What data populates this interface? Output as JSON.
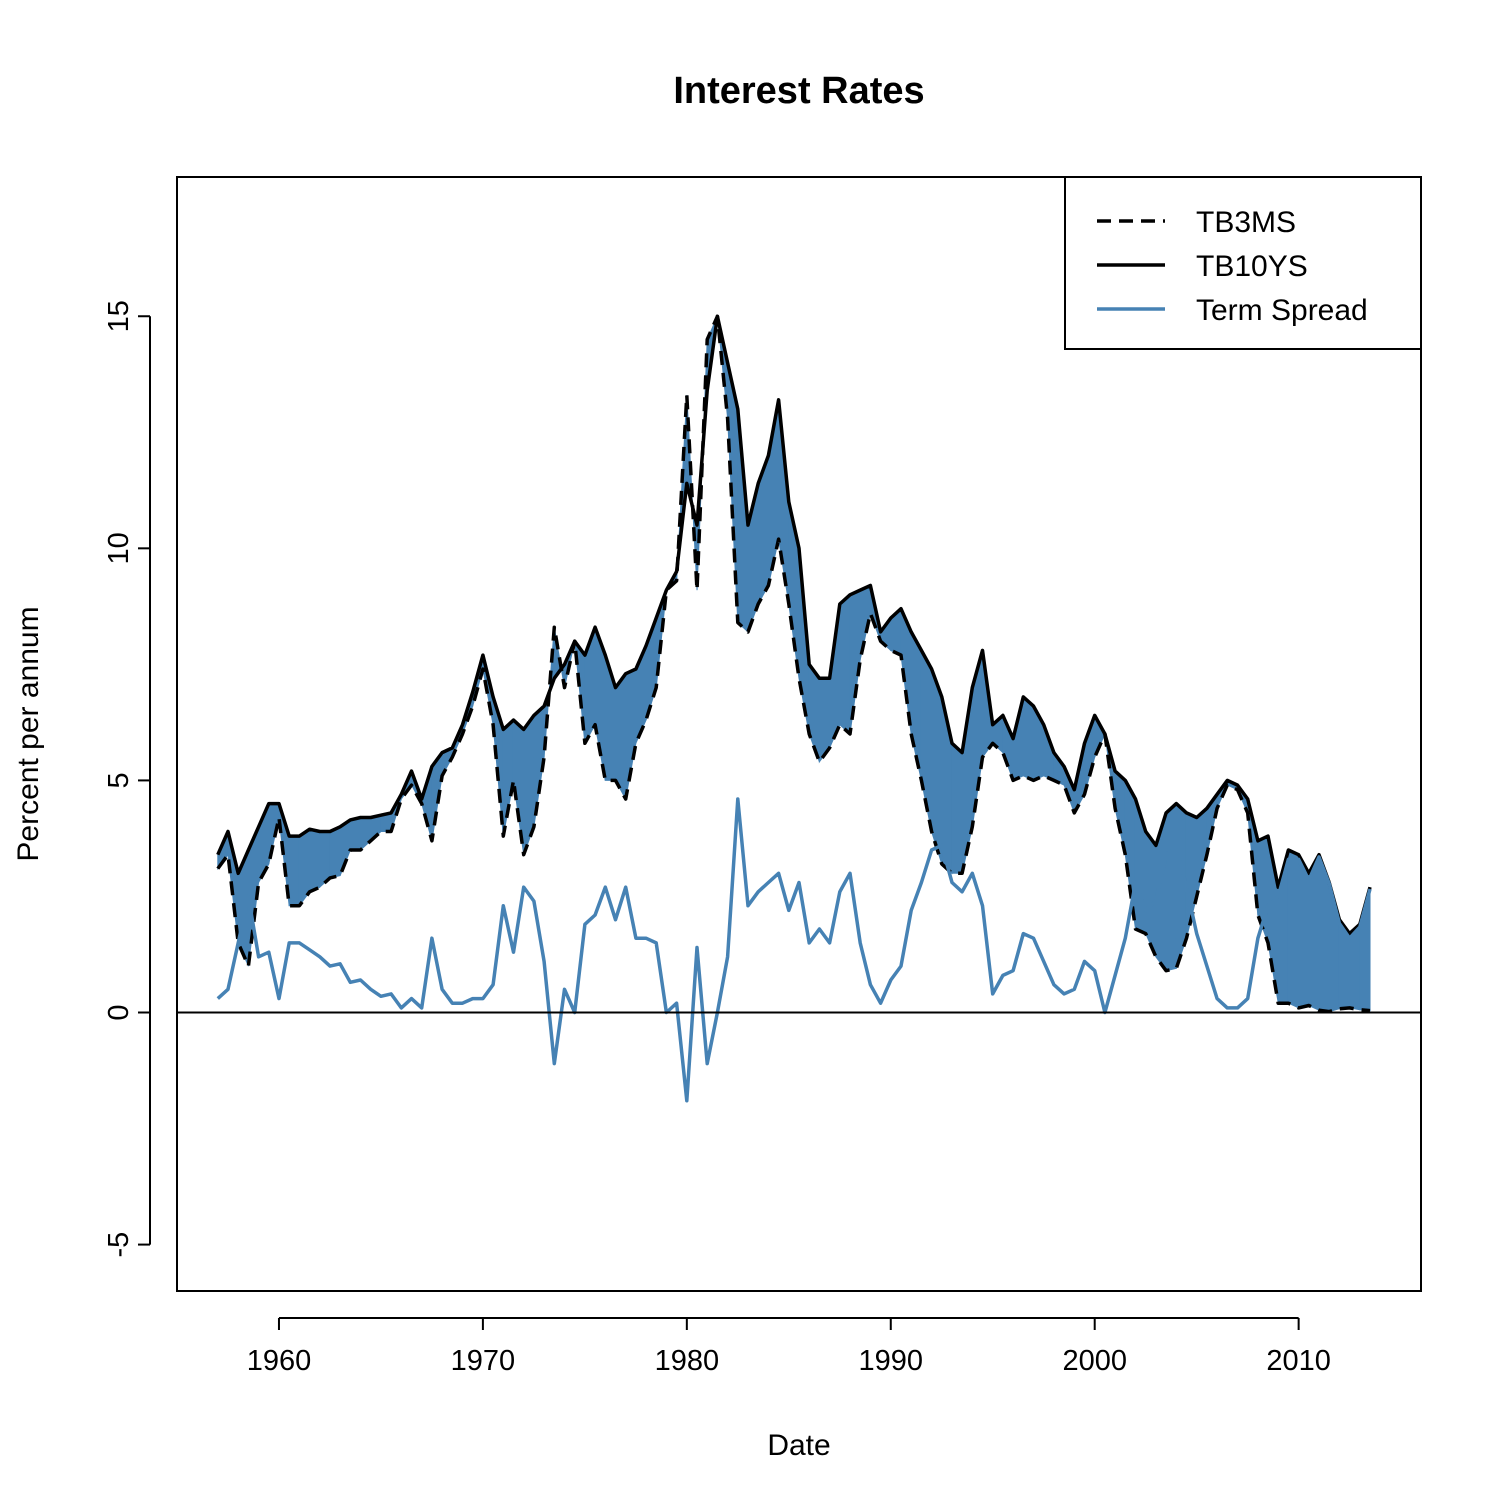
{
  "chart_data": {
    "type": "line",
    "title": "Interest Rates",
    "xlabel": "Date",
    "ylabel": "Percent per annum",
    "xlim": [
      1955,
      2016
    ],
    "ylim": [
      -6,
      18
    ],
    "x_ticks": [
      1960,
      1970,
      1980,
      1990,
      2000,
      2010
    ],
    "x_tick_labels": [
      "1960",
      "1970",
      "1980",
      "1990",
      "2000",
      "2010"
    ],
    "y_ticks": [
      -5,
      0,
      5,
      10,
      15
    ],
    "y_tick_labels": [
      "-5",
      "0",
      "5",
      "10",
      "15"
    ],
    "zero_line": 0,
    "grid": false,
    "legend_position": "top-right",
    "shaded_band": {
      "between": [
        "TB3MS",
        "TB10YS"
      ],
      "color": "#4682B4"
    },
    "x": [
      1957.0,
      1957.5,
      1958.0,
      1958.5,
      1959.0,
      1959.5,
      1960.0,
      1960.5,
      1961.0,
      1961.5,
      1962.0,
      1962.5,
      1963.0,
      1963.5,
      1964.0,
      1964.5,
      1965.0,
      1965.5,
      1966.0,
      1966.5,
      1967.0,
      1967.5,
      1968.0,
      1968.5,
      1969.0,
      1969.5,
      1970.0,
      1970.5,
      1971.0,
      1971.5,
      1972.0,
      1972.5,
      1973.0,
      1973.5,
      1974.0,
      1974.5,
      1975.0,
      1975.5,
      1976.0,
      1976.5,
      1977.0,
      1977.5,
      1978.0,
      1978.5,
      1979.0,
      1979.5,
      1980.0,
      1980.5,
      1981.0,
      1981.5,
      1982.0,
      1982.5,
      1983.0,
      1983.5,
      1984.0,
      1984.5,
      1985.0,
      1985.5,
      1986.0,
      1986.5,
      1987.0,
      1987.5,
      1988.0,
      1988.5,
      1989.0,
      1989.5,
      1990.0,
      1990.5,
      1991.0,
      1991.5,
      1992.0,
      1992.5,
      1993.0,
      1993.5,
      1994.0,
      1994.5,
      1995.0,
      1995.5,
      1996.0,
      1996.5,
      1997.0,
      1997.5,
      1998.0,
      1998.5,
      1999.0,
      1999.5,
      2000.0,
      2000.5,
      2001.0,
      2001.5,
      2002.0,
      2002.5,
      2003.0,
      2003.5,
      2004.0,
      2004.5,
      2005.0,
      2005.5,
      2006.0,
      2006.5,
      2007.0,
      2007.5,
      2008.0,
      2008.5,
      2009.0,
      2009.5,
      2010.0,
      2010.5,
      2011.0,
      2011.5,
      2012.0,
      2012.5,
      2013.0,
      2013.5
    ],
    "series": [
      {
        "name": "TB3MS",
        "color": "#000000",
        "dash": "dashed",
        "values": [
          3.1,
          3.4,
          1.5,
          1.0,
          2.8,
          3.2,
          4.2,
          2.3,
          2.3,
          2.6,
          2.7,
          2.9,
          2.95,
          3.5,
          3.5,
          3.7,
          3.9,
          3.9,
          4.6,
          4.9,
          4.5,
          3.7,
          5.1,
          5.5,
          6.0,
          6.6,
          7.4,
          6.2,
          3.8,
          5.0,
          3.4,
          4.0,
          5.5,
          8.3,
          7.0,
          8.0,
          5.8,
          6.2,
          5.0,
          5.0,
          4.6,
          5.8,
          6.3,
          7.0,
          9.1,
          9.3,
          13.3,
          9.1,
          14.5,
          15.0,
          12.8,
          8.4,
          8.2,
          8.8,
          9.2,
          10.2,
          8.8,
          7.2,
          6.0,
          5.4,
          5.7,
          6.2,
          6.0,
          7.6,
          8.6,
          8.0,
          7.8,
          7.7,
          6.0,
          5.0,
          3.9,
          3.2,
          3.0,
          3.0,
          4.0,
          5.5,
          5.8,
          5.6,
          5.0,
          5.1,
          5.0,
          5.1,
          5.0,
          4.9,
          4.3,
          4.7,
          5.5,
          6.0,
          4.4,
          3.4,
          1.8,
          1.7,
          1.2,
          0.9,
          0.95,
          1.6,
          2.5,
          3.4,
          4.4,
          4.9,
          4.8,
          4.3,
          2.1,
          1.5,
          0.2,
          0.2,
          0.1,
          0.15,
          0.05,
          0.02,
          0.08,
          0.1,
          0.06,
          0.04
        ]
      },
      {
        "name": "TB10YS",
        "color": "#000000",
        "dash": "solid",
        "values": [
          3.4,
          3.9,
          3.0,
          3.5,
          4.0,
          4.5,
          4.5,
          3.8,
          3.8,
          3.95,
          3.9,
          3.9,
          4.0,
          4.15,
          4.2,
          4.2,
          4.25,
          4.3,
          4.7,
          5.2,
          4.6,
          5.3,
          5.6,
          5.7,
          6.2,
          6.9,
          7.7,
          6.8,
          6.1,
          6.3,
          6.1,
          6.4,
          6.6,
          7.2,
          7.5,
          8.0,
          7.7,
          8.3,
          7.7,
          7.0,
          7.3,
          7.4,
          7.9,
          8.5,
          9.1,
          9.5,
          11.4,
          10.5,
          13.4,
          15.0,
          14.0,
          13.0,
          10.5,
          11.4,
          12.0,
          13.2,
          11.0,
          10.0,
          7.5,
          7.2,
          7.2,
          8.8,
          9.0,
          9.1,
          9.2,
          8.2,
          8.5,
          8.7,
          8.2,
          7.8,
          7.4,
          6.8,
          5.8,
          5.6,
          7.0,
          7.8,
          6.2,
          6.4,
          5.9,
          6.8,
          6.6,
          6.2,
          5.6,
          5.3,
          4.8,
          5.8,
          6.4,
          6.0,
          5.2,
          5.0,
          4.6,
          3.9,
          3.6,
          4.3,
          4.5,
          4.3,
          4.2,
          4.4,
          4.7,
          5.0,
          4.9,
          4.6,
          3.7,
          3.8,
          2.7,
          3.5,
          3.4,
          3.0,
          3.4,
          2.8,
          2.0,
          1.7,
          1.9,
          2.7
        ]
      },
      {
        "name": "Term Spread",
        "color": "#4682B4",
        "dash": "solid",
        "values": [
          0.3,
          0.5,
          1.5,
          2.5,
          1.2,
          1.3,
          0.3,
          1.5,
          1.5,
          1.35,
          1.2,
          1.0,
          1.05,
          0.65,
          0.7,
          0.5,
          0.35,
          0.4,
          0.1,
          0.3,
          0.1,
          1.6,
          0.5,
          0.2,
          0.2,
          0.3,
          0.3,
          0.6,
          2.3,
          1.3,
          2.7,
          2.4,
          1.1,
          -1.1,
          0.5,
          0.0,
          1.9,
          2.1,
          2.7,
          2.0,
          2.7,
          1.6,
          1.6,
          1.5,
          0.0,
          0.2,
          -1.9,
          1.4,
          -1.1,
          0.0,
          1.2,
          4.6,
          2.3,
          2.6,
          2.8,
          3.0,
          2.2,
          2.8,
          1.5,
          1.8,
          1.5,
          2.6,
          3.0,
          1.5,
          0.6,
          0.2,
          0.7,
          1.0,
          2.2,
          2.8,
          3.5,
          3.6,
          2.8,
          2.6,
          3.0,
          2.3,
          0.4,
          0.8,
          0.9,
          1.7,
          1.6,
          1.1,
          0.6,
          0.4,
          0.5,
          1.1,
          0.9,
          0.0,
          0.8,
          1.6,
          2.8,
          2.2,
          2.4,
          3.4,
          3.55,
          2.7,
          1.7,
          1.0,
          0.3,
          0.1,
          0.1,
          0.3,
          1.6,
          2.3,
          2.5,
          3.3,
          3.3,
          2.85,
          3.35,
          2.78,
          1.92,
          1.6,
          1.84,
          2.66
        ]
      }
    ]
  }
}
